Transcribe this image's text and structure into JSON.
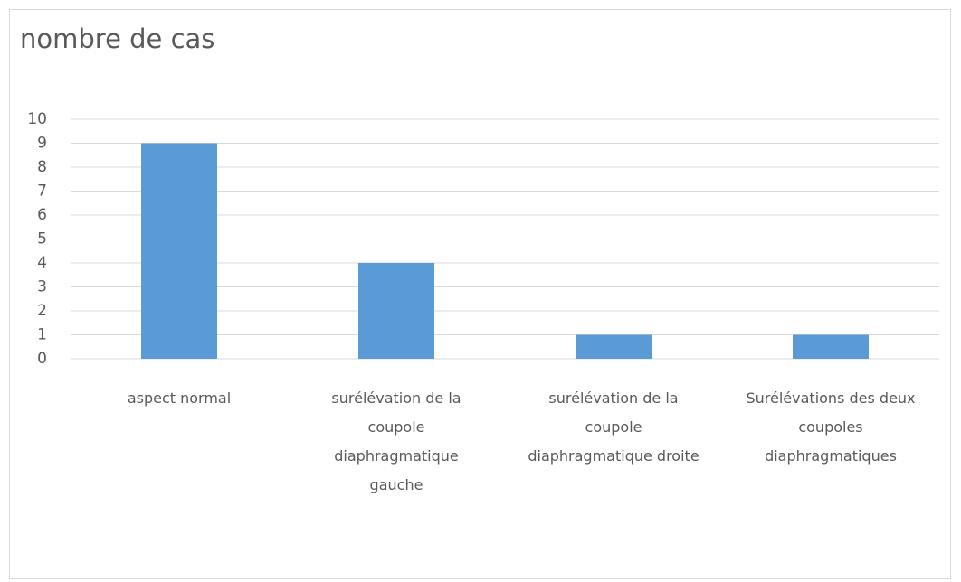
{
  "chart_data": {
    "type": "bar",
    "title": "nombre de cas",
    "categories": [
      "aspect normal",
      "surélévation de la coupole diaphragmatique gauche",
      "surélévation de la coupole diaphragmatique droite",
      "Surélévations des deux coupoles diaphragmatiques"
    ],
    "values": [
      9,
      4,
      1,
      1
    ],
    "color": "#5b9bd5",
    "ylim": [
      0,
      10
    ],
    "yticks": [
      0,
      1,
      2,
      3,
      4,
      5,
      6,
      7,
      8,
      9,
      10
    ],
    "grid": true
  }
}
